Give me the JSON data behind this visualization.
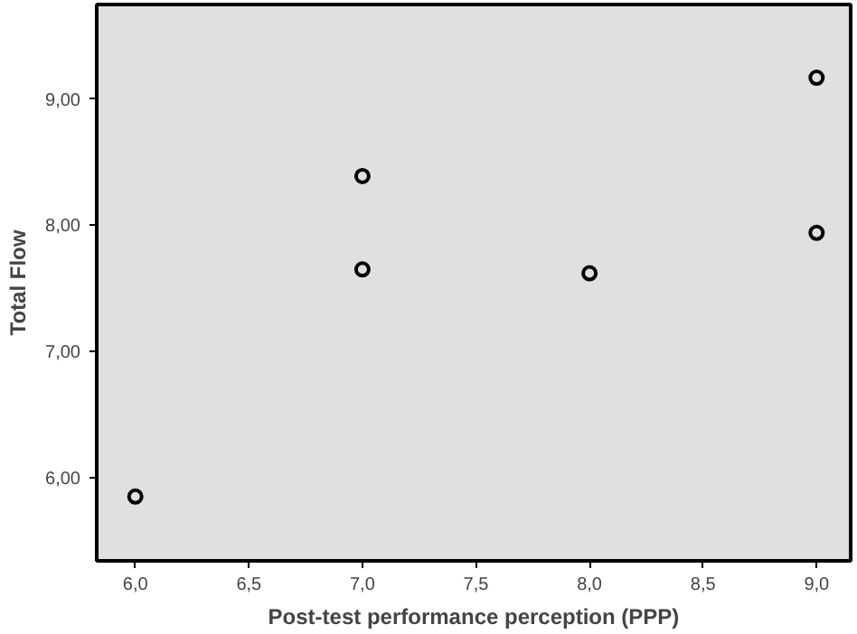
{
  "chart_data": {
    "type": "scatter",
    "xlabel": "Post-test performance perception (PPP)",
    "ylabel": "Total Flow",
    "x": [
      6,
      7,
      7,
      8,
      9,
      9
    ],
    "values": [
      5.85,
      8.39,
      7.65,
      7.62,
      9.17,
      7.94
    ],
    "color": "#000000",
    "marker": "circle",
    "grid": false,
    "xlim": [
      5.83,
      9.15
    ],
    "ylim": [
      5.34,
      9.75
    ],
    "xticks": [
      {
        "value": 6,
        "label": "6,0"
      },
      {
        "value": 6.5,
        "label": "6,5"
      },
      {
        "value": 7,
        "label": "7,0"
      },
      {
        "value": 7.5,
        "label": "7,5"
      },
      {
        "value": 8,
        "label": "8,0"
      },
      {
        "value": 8.5,
        "label": "8,5"
      },
      {
        "value": 9,
        "label": "9,0"
      }
    ],
    "yticks": [
      {
        "value": 6,
        "label": "6,00"
      },
      {
        "value": 7,
        "label": "7,00"
      },
      {
        "value": 8,
        "label": "8,00"
      },
      {
        "value": 9,
        "label": "9,00"
      }
    ]
  }
}
